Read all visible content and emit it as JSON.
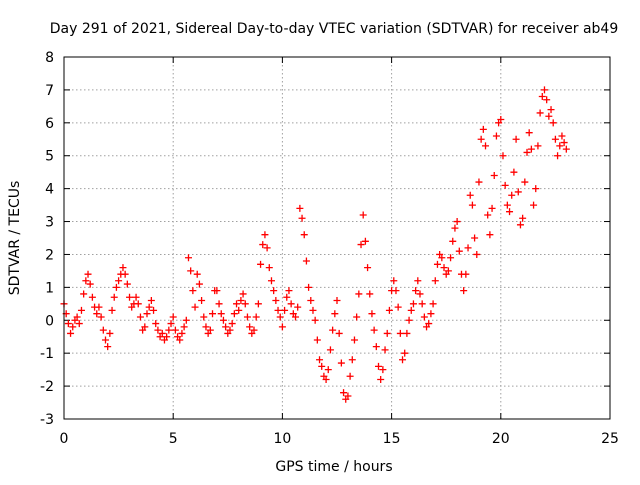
{
  "chart_data": {
    "type": "scatter",
    "title": "Day 291 of 2021, Sidereal Day-to-day VTEC variation (SDTVAR) for receiver ab49",
    "xlabel": "GPS time / hours",
    "ylabel": "SDTVAR / TECUs",
    "xlim": [
      0,
      25
    ],
    "ylim": [
      -3,
      8
    ],
    "xticks": [
      "0",
      "5",
      "10",
      "15",
      "20",
      "25"
    ],
    "yticks": [
      "-3",
      "-2",
      "-1",
      "0",
      "1",
      "2",
      "3",
      "4",
      "5",
      "6",
      "7",
      "8"
    ],
    "grid": true,
    "marker": "+",
    "color": "#ff0000",
    "series": [
      {
        "name": "SDTVAR",
        "points": [
          [
            0.0,
            0.5
          ],
          [
            0.1,
            0.2
          ],
          [
            0.2,
            -0.1
          ],
          [
            0.3,
            -0.4
          ],
          [
            0.4,
            -0.2
          ],
          [
            0.5,
            0.0
          ],
          [
            0.6,
            0.1
          ],
          [
            0.7,
            -0.1
          ],
          [
            0.8,
            0.3
          ],
          [
            0.9,
            0.8
          ],
          [
            1.0,
            1.2
          ],
          [
            1.1,
            1.4
          ],
          [
            1.2,
            1.1
          ],
          [
            1.3,
            0.7
          ],
          [
            1.4,
            0.4
          ],
          [
            1.5,
            0.2
          ],
          [
            1.6,
            0.4
          ],
          [
            1.7,
            0.1
          ],
          [
            1.8,
            -0.3
          ],
          [
            1.9,
            -0.6
          ],
          [
            2.0,
            -0.8
          ],
          [
            2.1,
            -0.4
          ],
          [
            2.2,
            0.3
          ],
          [
            2.3,
            0.7
          ],
          [
            2.4,
            1.0
          ],
          [
            2.5,
            1.2
          ],
          [
            2.6,
            1.4
          ],
          [
            2.7,
            1.6
          ],
          [
            2.8,
            1.4
          ],
          [
            2.9,
            1.1
          ],
          [
            3.0,
            0.7
          ],
          [
            3.1,
            0.4
          ],
          [
            3.2,
            0.5
          ],
          [
            3.3,
            0.7
          ],
          [
            3.4,
            0.5
          ],
          [
            3.5,
            0.1
          ],
          [
            3.6,
            -0.3
          ],
          [
            3.7,
            -0.2
          ],
          [
            3.8,
            0.2
          ],
          [
            3.9,
            0.4
          ],
          [
            4.0,
            0.6
          ],
          [
            4.1,
            0.3
          ],
          [
            4.2,
            -0.1
          ],
          [
            4.3,
            -0.3
          ],
          [
            4.4,
            -0.5
          ],
          [
            4.5,
            -0.4
          ],
          [
            4.6,
            -0.6
          ],
          [
            4.7,
            -0.5
          ],
          [
            4.8,
            -0.3
          ],
          [
            4.9,
            -0.1
          ],
          [
            5.0,
            0.1
          ],
          [
            5.1,
            -0.3
          ],
          [
            5.2,
            -0.5
          ],
          [
            5.3,
            -0.6
          ],
          [
            5.4,
            -0.4
          ],
          [
            5.5,
            -0.2
          ],
          [
            5.6,
            0.0
          ],
          [
            5.7,
            1.9
          ],
          [
            5.8,
            1.5
          ],
          [
            5.9,
            0.9
          ],
          [
            6.0,
            0.4
          ],
          [
            6.1,
            1.4
          ],
          [
            6.2,
            1.1
          ],
          [
            6.3,
            0.6
          ],
          [
            6.4,
            0.1
          ],
          [
            6.5,
            -0.2
          ],
          [
            6.6,
            -0.4
          ],
          [
            6.7,
            -0.3
          ],
          [
            6.8,
            0.2
          ],
          [
            6.9,
            0.9
          ],
          [
            7.0,
            0.9
          ],
          [
            7.1,
            0.5
          ],
          [
            7.2,
            0.2
          ],
          [
            7.3,
            0.0
          ],
          [
            7.4,
            -0.2
          ],
          [
            7.5,
            -0.4
          ],
          [
            7.6,
            -0.3
          ],
          [
            7.7,
            -0.1
          ],
          [
            7.8,
            0.2
          ],
          [
            7.9,
            0.5
          ],
          [
            8.0,
            0.3
          ],
          [
            8.1,
            0.6
          ],
          [
            8.2,
            0.8
          ],
          [
            8.3,
            0.5
          ],
          [
            8.4,
            0.1
          ],
          [
            8.5,
            -0.2
          ],
          [
            8.6,
            -0.4
          ],
          [
            8.7,
            -0.3
          ],
          [
            8.8,
            0.1
          ],
          [
            8.9,
            0.5
          ],
          [
            9.0,
            1.7
          ],
          [
            9.1,
            2.3
          ],
          [
            9.2,
            2.6
          ],
          [
            9.3,
            2.2
          ],
          [
            9.4,
            1.6
          ],
          [
            9.5,
            1.2
          ],
          [
            9.6,
            0.9
          ],
          [
            9.7,
            0.6
          ],
          [
            9.8,
            0.3
          ],
          [
            9.9,
            0.1
          ],
          [
            10.0,
            -0.2
          ],
          [
            10.1,
            0.3
          ],
          [
            10.2,
            0.7
          ],
          [
            10.3,
            0.9
          ],
          [
            10.4,
            0.5
          ],
          [
            10.5,
            0.2
          ],
          [
            10.6,
            0.1
          ],
          [
            10.7,
            0.4
          ],
          [
            10.8,
            3.4
          ],
          [
            10.9,
            3.1
          ],
          [
            11.0,
            2.6
          ],
          [
            11.1,
            1.8
          ],
          [
            11.2,
            1.0
          ],
          [
            11.3,
            0.6
          ],
          [
            11.4,
            0.3
          ],
          [
            11.5,
            0.0
          ],
          [
            11.6,
            -0.6
          ],
          [
            11.7,
            -1.2
          ],
          [
            11.8,
            -1.4
          ],
          [
            11.9,
            -1.7
          ],
          [
            12.0,
            -1.8
          ],
          [
            12.1,
            -1.5
          ],
          [
            12.2,
            -0.9
          ],
          [
            12.3,
            -0.3
          ],
          [
            12.4,
            0.2
          ],
          [
            12.5,
            0.6
          ],
          [
            12.6,
            -0.4
          ],
          [
            12.7,
            -1.3
          ],
          [
            12.8,
            -2.2
          ],
          [
            12.9,
            -2.4
          ],
          [
            13.0,
            -2.3
          ],
          [
            13.1,
            -1.7
          ],
          [
            13.2,
            -1.2
          ],
          [
            13.3,
            -0.6
          ],
          [
            13.4,
            0.1
          ],
          [
            13.5,
            0.8
          ],
          [
            13.6,
            2.3
          ],
          [
            13.7,
            3.2
          ],
          [
            13.8,
            2.4
          ],
          [
            13.9,
            1.6
          ],
          [
            14.0,
            0.8
          ],
          [
            14.1,
            0.2
          ],
          [
            14.2,
            -0.3
          ],
          [
            14.3,
            -0.8
          ],
          [
            14.4,
            -1.4
          ],
          [
            14.5,
            -1.8
          ],
          [
            14.6,
            -1.5
          ],
          [
            14.7,
            -0.9
          ],
          [
            14.8,
            -0.4
          ],
          [
            14.9,
            0.3
          ],
          [
            15.0,
            0.9
          ],
          [
            15.1,
            1.2
          ],
          [
            15.2,
            0.9
          ],
          [
            15.3,
            0.4
          ],
          [
            15.4,
            -0.4
          ],
          [
            15.5,
            -1.2
          ],
          [
            15.6,
            -1.0
          ],
          [
            15.7,
            -0.4
          ],
          [
            15.8,
            0.0
          ],
          [
            15.9,
            0.3
          ],
          [
            16.0,
            0.5
          ],
          [
            16.1,
            0.9
          ],
          [
            16.2,
            1.2
          ],
          [
            16.3,
            0.8
          ],
          [
            16.4,
            0.5
          ],
          [
            16.5,
            0.1
          ],
          [
            16.6,
            -0.2
          ],
          [
            16.7,
            -0.1
          ],
          [
            16.8,
            0.2
          ],
          [
            16.9,
            0.5
          ],
          [
            17.0,
            1.2
          ],
          [
            17.1,
            1.7
          ],
          [
            17.2,
            2.0
          ],
          [
            17.3,
            1.9
          ],
          [
            17.4,
            1.6
          ],
          [
            17.5,
            1.4
          ],
          [
            17.6,
            1.5
          ],
          [
            17.7,
            1.9
          ],
          [
            17.8,
            2.4
          ],
          [
            17.9,
            2.8
          ],
          [
            18.0,
            3.0
          ],
          [
            18.1,
            2.1
          ],
          [
            18.2,
            1.4
          ],
          [
            18.3,
            0.9
          ],
          [
            18.4,
            1.4
          ],
          [
            18.5,
            2.2
          ],
          [
            18.6,
            3.8
          ],
          [
            18.7,
            3.5
          ],
          [
            18.8,
            2.5
          ],
          [
            18.9,
            2.0
          ],
          [
            19.0,
            4.2
          ],
          [
            19.1,
            5.5
          ],
          [
            19.2,
            5.8
          ],
          [
            19.3,
            5.3
          ],
          [
            19.4,
            3.2
          ],
          [
            19.5,
            2.6
          ],
          [
            19.6,
            3.4
          ],
          [
            19.7,
            4.4
          ],
          [
            19.8,
            5.6
          ],
          [
            19.9,
            6.0
          ],
          [
            20.0,
            6.1
          ],
          [
            20.1,
            5.0
          ],
          [
            20.2,
            4.1
          ],
          [
            20.3,
            3.5
          ],
          [
            20.4,
            3.3
          ],
          [
            20.5,
            3.8
          ],
          [
            20.6,
            4.5
          ],
          [
            20.7,
            5.5
          ],
          [
            20.8,
            3.9
          ],
          [
            20.9,
            2.9
          ],
          [
            21.0,
            3.1
          ],
          [
            21.1,
            4.2
          ],
          [
            21.2,
            5.1
          ],
          [
            21.3,
            5.7
          ],
          [
            21.4,
            5.2
          ],
          [
            21.5,
            3.5
          ],
          [
            21.6,
            4.0
          ],
          [
            21.7,
            5.3
          ],
          [
            21.8,
            6.3
          ],
          [
            21.9,
            6.8
          ],
          [
            22.0,
            7.0
          ],
          [
            22.1,
            6.7
          ],
          [
            22.2,
            6.2
          ],
          [
            22.3,
            6.4
          ],
          [
            22.4,
            6.0
          ],
          [
            22.5,
            5.5
          ],
          [
            22.6,
            5.0
          ],
          [
            22.7,
            5.3
          ],
          [
            22.8,
            5.6
          ],
          [
            22.9,
            5.4
          ],
          [
            23.0,
            5.2
          ]
        ]
      }
    ]
  }
}
